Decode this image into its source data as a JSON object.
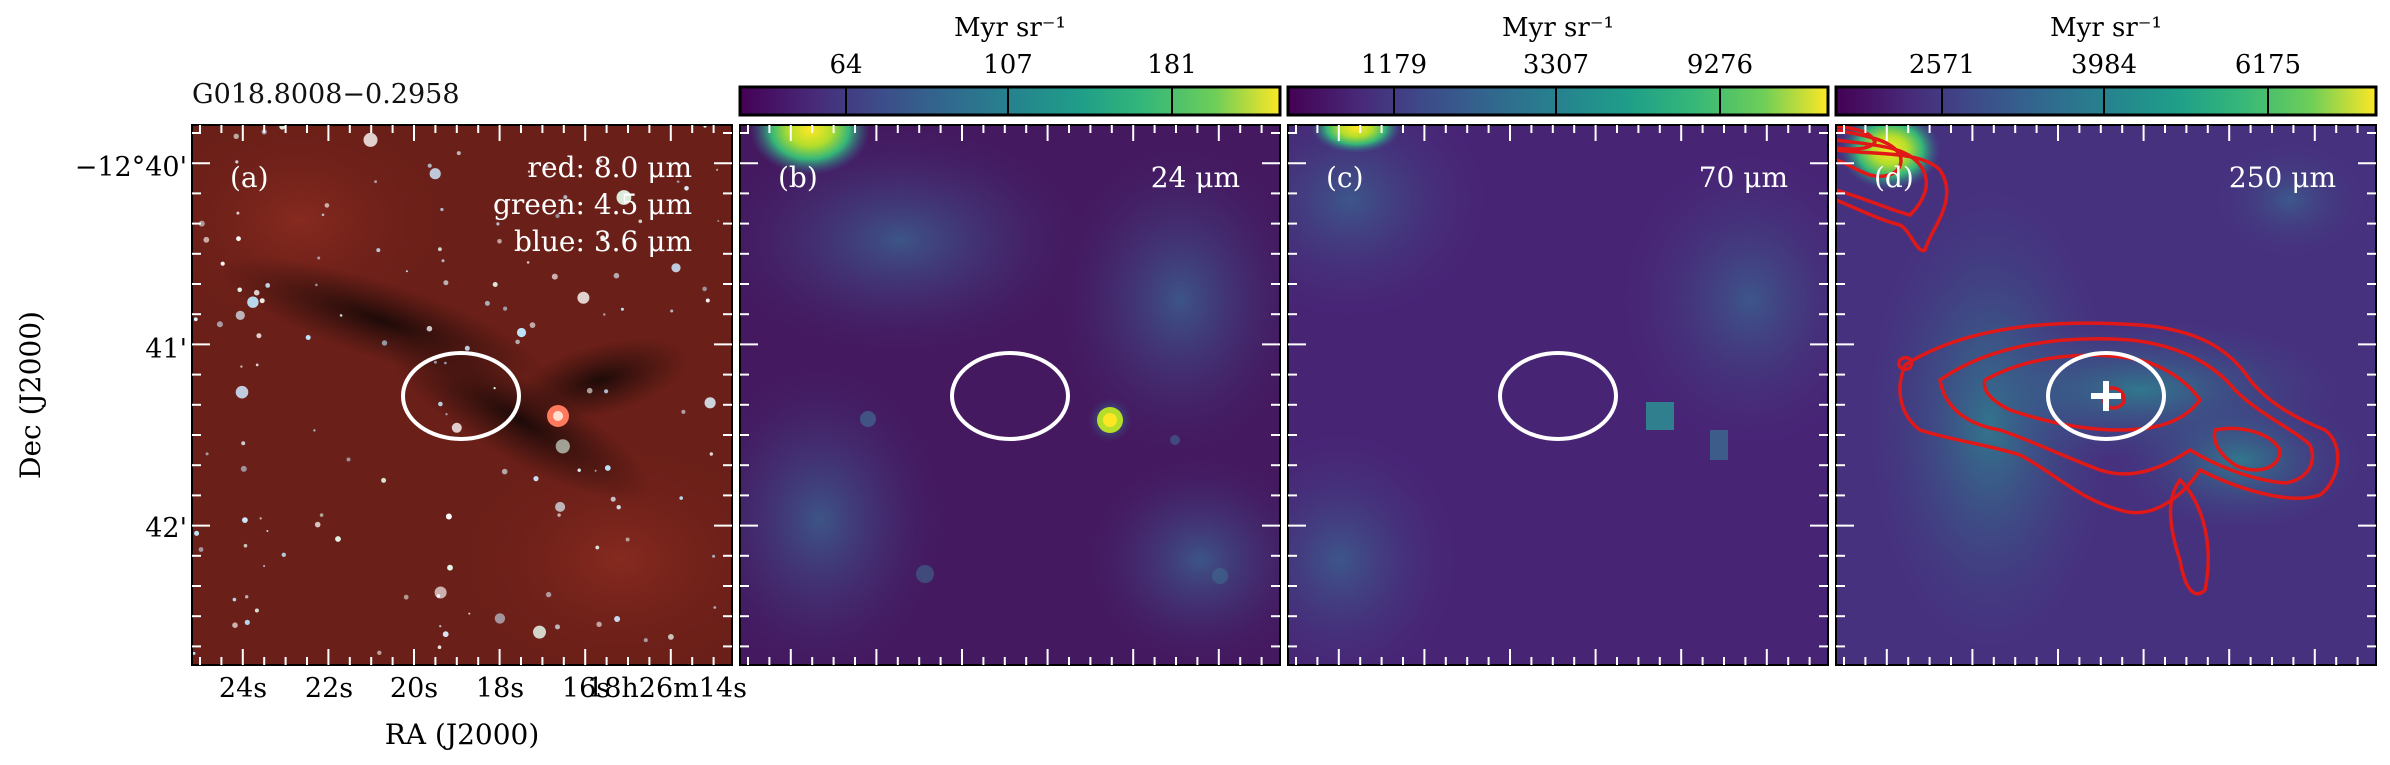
{
  "figure": {
    "source_name": "G018.8008−0.2958",
    "x_axis_label": "RA (J2000)",
    "y_axis_label": "Dec (J2000)",
    "ra_ticks": [
      "24s",
      "22s",
      "20s",
      "18s",
      "16s",
      "18h26m14s"
    ],
    "dec_ticks": [
      "−12°40'",
      "41'",
      "42'"
    ]
  },
  "panels": [
    {
      "id": "a",
      "letter": "(a)",
      "legend": [
        "red: 8.0 μm",
        "green: 4.5 μm",
        "blue: 3.6 μm"
      ],
      "colorbar": null
    },
    {
      "id": "b",
      "letter": "(b)",
      "band": "24 μm",
      "colorbar": {
        "unit": "Myr sr⁻¹",
        "ticks": [
          "64",
          "107",
          "181"
        ],
        "colormap": "viridis"
      }
    },
    {
      "id": "c",
      "letter": "(c)",
      "band": "70 μm",
      "colorbar": {
        "unit": "Myr sr⁻¹",
        "ticks": [
          "1179",
          "3307",
          "9276"
        ],
        "colormap": "viridis"
      }
    },
    {
      "id": "d",
      "letter": "(d)",
      "band": "250 μm",
      "colorbar": {
        "unit": "Myr sr⁻¹",
        "ticks": [
          "2571",
          "3984",
          "6175"
        ],
        "colormap": "viridis"
      },
      "overlays": [
        "red contours",
        "white cross"
      ]
    }
  ],
  "colors": {
    "viridis_dark": "#440154",
    "viridis_mid": "#21918c",
    "viridis_light": "#fde725",
    "ellipse": "#ffffff",
    "contour": "#e01818",
    "rgb_background": "#6a1f18"
  }
}
